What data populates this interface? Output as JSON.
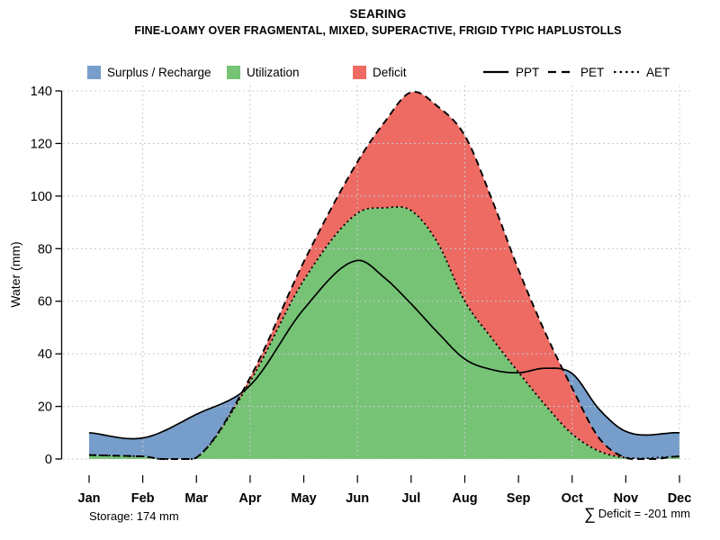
{
  "title": "SEARING",
  "subtitle": "FINE-LOAMY OVER FRAGMENTAL, MIXED, SUPERACTIVE, FRIGID TYPIC HAPLUSTOLLS",
  "ylabel": "Water (mm)",
  "annotations": {
    "storage": "Storage: 174 mm",
    "deficit_sigma": "∑",
    "deficit": "Deficit = -201 mm"
  },
  "legend": {
    "fills": [
      {
        "label": "Surplus / Recharge",
        "color": "#779ECB"
      },
      {
        "label": "Utilization",
        "color": "#76C376"
      },
      {
        "label": "Deficit",
        "color": "#ED6B63"
      }
    ],
    "lines": [
      {
        "label": "PPT",
        "style": "solid"
      },
      {
        "label": "PET",
        "style": "dashed"
      },
      {
        "label": "AET",
        "style": "dotted"
      }
    ]
  },
  "chart_data": {
    "type": "area",
    "title": "SEARING",
    "xlabel": "",
    "ylabel": "Water (mm)",
    "months": [
      "Jan",
      "Feb",
      "Mar",
      "Apr",
      "May",
      "Jun",
      "Jul",
      "Aug",
      "Sep",
      "Oct",
      "Nov",
      "Dec"
    ],
    "ylim": [
      0,
      140
    ],
    "yticks": [
      0,
      20,
      40,
      60,
      80,
      100,
      120,
      140
    ],
    "grid": "dotted light-gray; horizontal at every y tick, vertical at Feb/Apr/Jun/Aug/Oct/Dec",
    "grid_color": "#c9c9c9",
    "line_color": "#000000",
    "x": [
      0,
      1,
      2,
      3,
      4,
      5,
      5.5,
      6,
      6.5,
      7,
      7.5,
      8,
      8.5,
      9,
      9.5,
      10,
      11
    ],
    "series": [
      {
        "name": "PPT",
        "line": "solid",
        "values": [
          10,
          8,
          17,
          28,
          57,
          75.5,
          69,
          59,
          48,
          38,
          34,
          32.8,
          34.5,
          32.5,
          19,
          10.5,
          10
        ]
      },
      {
        "name": "PET",
        "line": "dashed",
        "values": [
          1.5,
          1,
          0.5,
          31,
          75,
          113,
          128,
          139.5,
          134,
          123,
          99,
          72,
          48,
          27,
          8,
          0.5,
          1
        ]
      },
      {
        "name": "AET",
        "line": "dotted",
        "values": [
          1.5,
          1,
          0.5,
          29.5,
          68,
          93.5,
          95.5,
          94.5,
          82,
          60,
          46,
          33,
          20.5,
          9.5,
          3,
          0.5,
          1
        ]
      }
    ],
    "areas": [
      {
        "name": "Utilization",
        "color": "#76C376",
        "between": [
          "zero",
          "AET"
        ]
      },
      {
        "name": "Deficit",
        "color": "#ED6B63",
        "between": [
          "AET",
          "PET"
        ]
      },
      {
        "name": "Surplus / Recharge",
        "color": "#779ECB",
        "between": [
          "PET",
          "PPT"
        ]
      }
    ],
    "annotations": {
      "storage_mm": 174,
      "sum_deficit_mm": -201
    }
  }
}
